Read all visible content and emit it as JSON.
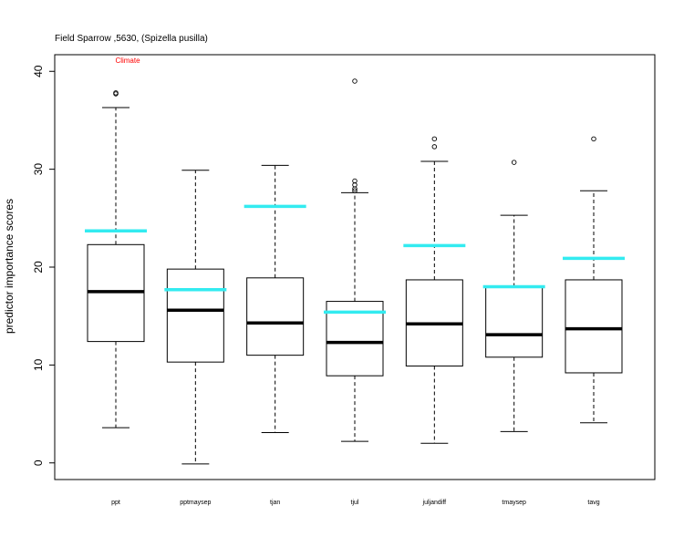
{
  "chart_data": {
    "type": "box",
    "title": "Field Sparrow ,5630, (Spizella pusilla)",
    "annotation": "Climate",
    "annotation_color": "#ff0000",
    "xlabel": "",
    "ylabel": "predictor importance scores",
    "ylim": [
      -1.7,
      41.7
    ],
    "yticks": [
      0,
      10,
      20,
      30,
      40
    ],
    "grid": false,
    "reference_color": "#33ebf0",
    "categories": [
      "ppt",
      "pptmaysep",
      "tjan",
      "tjul",
      "juljandiff",
      "tmaysep",
      "tavg"
    ],
    "boxes": [
      {
        "whisker_low": 3.6,
        "q1": 12.4,
        "median": 17.5,
        "q3": 22.3,
        "whisker_high": 36.3,
        "outliers": [
          37.8,
          37.7
        ],
        "reference": 23.7
      },
      {
        "whisker_low": -0.1,
        "q1": 10.3,
        "median": 15.6,
        "q3": 19.8,
        "whisker_high": 29.9,
        "outliers": [],
        "reference": 17.7
      },
      {
        "whisker_low": 3.1,
        "q1": 11.0,
        "median": 14.3,
        "q3": 18.9,
        "whisker_high": 30.4,
        "outliers": [],
        "reference": 26.2
      },
      {
        "whisker_low": 2.2,
        "q1": 8.9,
        "median": 12.3,
        "q3": 16.5,
        "whisker_high": 27.6,
        "outliers": [
          39.0,
          28.8,
          28.4,
          28.0,
          27.8
        ],
        "reference": 15.4
      },
      {
        "whisker_low": 2.0,
        "q1": 9.9,
        "median": 14.2,
        "q3": 18.7,
        "whisker_high": 30.8,
        "outliers": [
          33.1,
          32.3
        ],
        "reference": 22.2
      },
      {
        "whisker_low": 3.2,
        "q1": 10.8,
        "median": 13.1,
        "q3": 18.0,
        "whisker_high": 25.3,
        "outliers": [
          30.7
        ],
        "reference": 18.0
      },
      {
        "whisker_low": 4.1,
        "q1": 9.2,
        "median": 13.7,
        "q3": 18.7,
        "whisker_high": 27.8,
        "outliers": [
          33.1
        ],
        "reference": 20.9
      }
    ]
  }
}
